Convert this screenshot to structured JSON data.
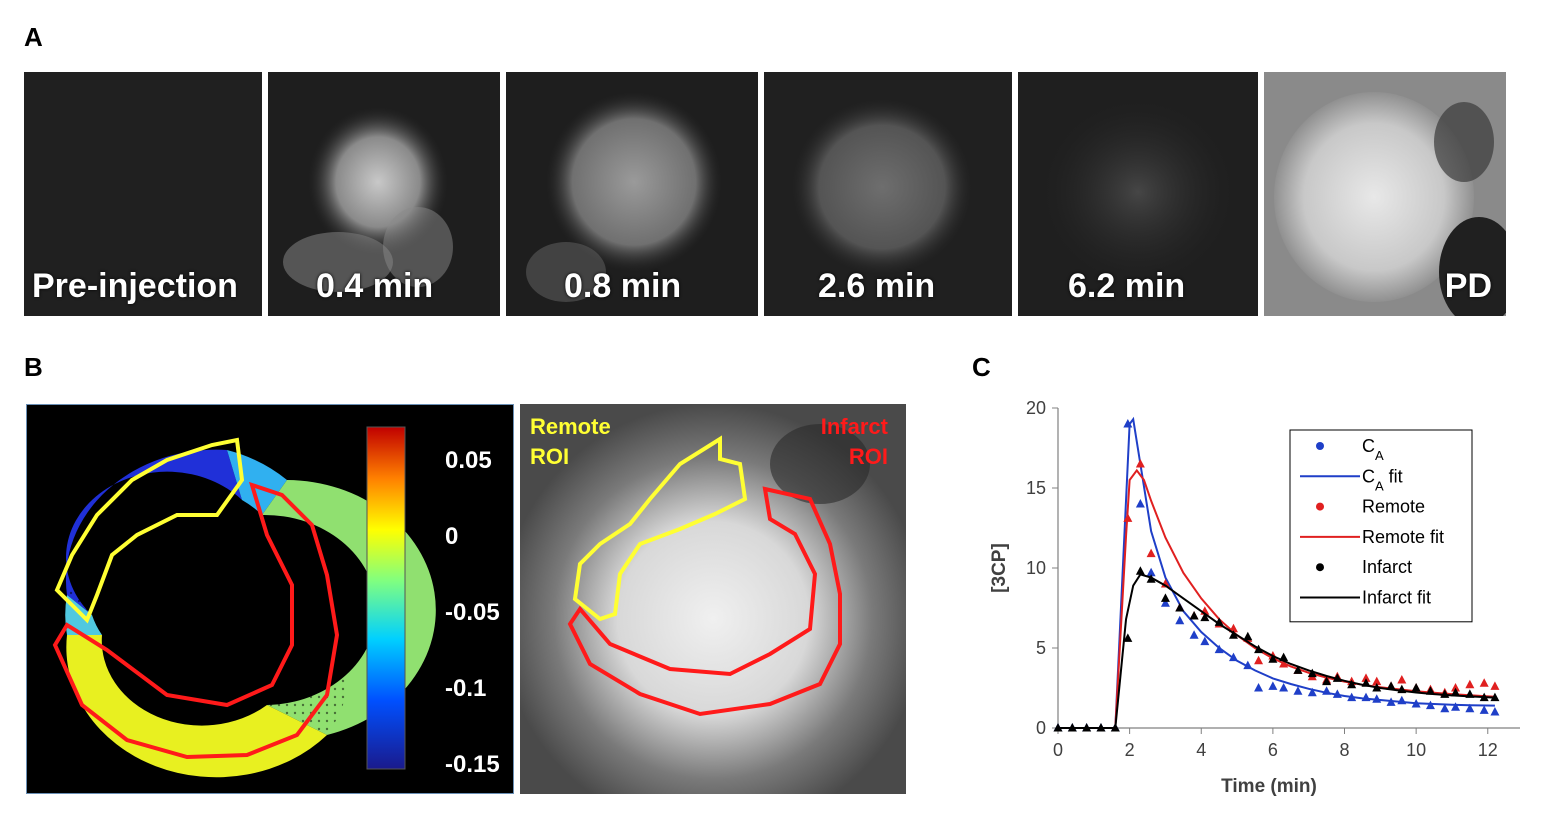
{
  "panel_letters": {
    "a": "A",
    "b": "B",
    "c": "C"
  },
  "panelA": {
    "tiles": [
      {
        "label": "Pre-injection",
        "signal": 0.15
      },
      {
        "label": "0.4 min",
        "signal": 0.75
      },
      {
        "label": "0.8 min",
        "signal": 0.6
      },
      {
        "label": "2.6 min",
        "signal": 0.35
      },
      {
        "label": "6.2 min",
        "signal": 0.22
      },
      {
        "label": "PD",
        "signal": 1.0
      }
    ]
  },
  "panelB": {
    "colorbar_ticks": [
      "0.05",
      "0",
      "-0.05",
      "-0.1",
      "-0.15"
    ],
    "remote_roi_label": [
      "Remote",
      "ROI"
    ],
    "infarct_roi_label": [
      "Infarct",
      "ROI"
    ],
    "remote_color": "#ffff33",
    "infarct_color": "#ff1a1a"
  },
  "chart_data": {
    "type": "scatter",
    "xlabel": "Time (min)",
    "ylabel": "[3CP]",
    "xlim": [
      0,
      12.9
    ],
    "ylim": [
      0,
      20
    ],
    "xticks": [
      0,
      2,
      4,
      6,
      8,
      10,
      12
    ],
    "yticks": [
      0,
      5,
      10,
      15,
      20
    ],
    "legend_position": "top-right",
    "series": [
      {
        "name": "C",
        "name_sub": "A",
        "color": "#1f3fc8",
        "kind": "points",
        "x": [
          0,
          0.4,
          0.8,
          1.2,
          1.6,
          1.95,
          2.3,
          2.6,
          3.0,
          3.4,
          3.8,
          4.1,
          4.5,
          4.9,
          5.3,
          5.6,
          6.0,
          6.3,
          6.7,
          7.1,
          7.5,
          7.8,
          8.2,
          8.6,
          8.9,
          9.3,
          9.6,
          10.0,
          10.4,
          10.8,
          11.1,
          11.5,
          11.9,
          12.2
        ],
        "y": [
          0,
          0,
          0,
          0,
          0,
          19.0,
          14.0,
          9.7,
          7.8,
          6.7,
          5.8,
          5.4,
          4.9,
          4.4,
          3.9,
          2.5,
          2.6,
          2.5,
          2.3,
          2.2,
          2.3,
          2.1,
          1.9,
          1.9,
          1.8,
          1.6,
          1.7,
          1.5,
          1.4,
          1.2,
          1.3,
          1.2,
          1.1,
          1.0
        ]
      },
      {
        "name": "C",
        "name_sub": "A",
        "suffix": " fit",
        "color": "#1f3fc8",
        "kind": "line",
        "x": [
          0,
          1.6,
          2.0,
          2.1,
          2.3,
          2.6,
          3.0,
          3.5,
          4.0,
          4.5,
          5.0,
          5.5,
          6.0,
          6.5,
          7.0,
          7.5,
          8.0,
          8.5,
          9.0,
          9.5,
          10.0,
          10.5,
          11.0,
          11.5,
          12.2
        ],
        "y": [
          0,
          0,
          19.0,
          19.3,
          16.5,
          12.3,
          9.4,
          7.3,
          6.0,
          5.0,
          4.2,
          3.6,
          3.1,
          2.75,
          2.45,
          2.2,
          2.0,
          1.85,
          1.75,
          1.65,
          1.55,
          1.5,
          1.45,
          1.42,
          1.4
        ]
      },
      {
        "name": "Remote",
        "color": "#e02020",
        "kind": "points",
        "x": [
          1.95,
          2.3,
          2.6,
          3.0,
          3.4,
          3.8,
          4.1,
          4.5,
          4.9,
          5.3,
          5.6,
          6.0,
          6.3,
          6.7,
          7.1,
          7.5,
          7.8,
          8.2,
          8.6,
          8.9,
          9.3,
          9.6,
          10.0,
          10.4,
          10.8,
          11.1,
          11.5,
          11.9,
          12.2
        ],
        "y": [
          13.1,
          16.5,
          10.9,
          9.0,
          7.5,
          7.0,
          7.3,
          6.5,
          6.2,
          5.6,
          4.2,
          4.5,
          4.0,
          3.6,
          3.2,
          3.0,
          3.2,
          2.9,
          3.1,
          2.9,
          2.6,
          3.0,
          2.5,
          2.4,
          2.2,
          2.5,
          2.7,
          2.8,
          2.6
        ]
      },
      {
        "name": "Remote fit",
        "color": "#e02020",
        "kind": "line",
        "x": [
          0,
          1.6,
          1.9,
          2.0,
          2.2,
          2.4,
          2.6,
          3.0,
          3.5,
          4.0,
          4.5,
          5.0,
          5.5,
          6.0,
          6.5,
          7.0,
          7.5,
          8.0,
          8.5,
          9.0,
          9.5,
          10.0,
          10.5,
          11.0,
          11.5,
          12.2
        ],
        "y": [
          0,
          0,
          12.0,
          15.5,
          16.1,
          15.5,
          14.2,
          11.9,
          9.7,
          8.1,
          6.8,
          5.8,
          5.0,
          4.35,
          3.85,
          3.45,
          3.15,
          2.9,
          2.7,
          2.55,
          2.42,
          2.3,
          2.2,
          2.12,
          2.05,
          1.95
        ]
      },
      {
        "name": "Infarct",
        "color": "#000000",
        "kind": "points",
        "x": [
          0,
          0.4,
          0.8,
          1.2,
          1.6,
          1.95,
          2.3,
          2.6,
          3.0,
          3.4,
          3.8,
          4.1,
          4.5,
          4.9,
          5.3,
          5.6,
          6.0,
          6.3,
          6.7,
          7.1,
          7.5,
          7.8,
          8.2,
          8.6,
          8.9,
          9.3,
          9.6,
          10.0,
          10.4,
          10.8,
          11.1,
          11.5,
          11.9,
          12.2
        ],
        "y": [
          0,
          0,
          0,
          0,
          0,
          5.6,
          9.8,
          9.3,
          8.1,
          7.5,
          7.0,
          6.9,
          6.6,
          5.8,
          5.7,
          4.9,
          4.3,
          4.4,
          3.6,
          3.4,
          2.9,
          3.1,
          2.7,
          2.8,
          2.5,
          2.6,
          2.4,
          2.5,
          2.3,
          2.1,
          2.2,
          2.1,
          1.9,
          1.9
        ]
      },
      {
        "name": "Infarct fit",
        "color": "#000000",
        "kind": "line",
        "x": [
          0,
          1.6,
          1.9,
          2.1,
          2.3,
          2.6,
          3.0,
          3.5,
          4.0,
          4.5,
          5.0,
          5.5,
          6.0,
          6.5,
          7.0,
          7.5,
          8.0,
          8.5,
          9.0,
          9.5,
          10.0,
          10.5,
          11.0,
          11.5,
          12.2
        ],
        "y": [
          0,
          0,
          6.8,
          8.9,
          9.6,
          9.4,
          8.9,
          8.1,
          7.3,
          6.5,
          5.8,
          5.1,
          4.5,
          4.0,
          3.6,
          3.25,
          2.95,
          2.7,
          2.5,
          2.35,
          2.22,
          2.12,
          2.04,
          1.98,
          1.9
        ]
      }
    ]
  }
}
